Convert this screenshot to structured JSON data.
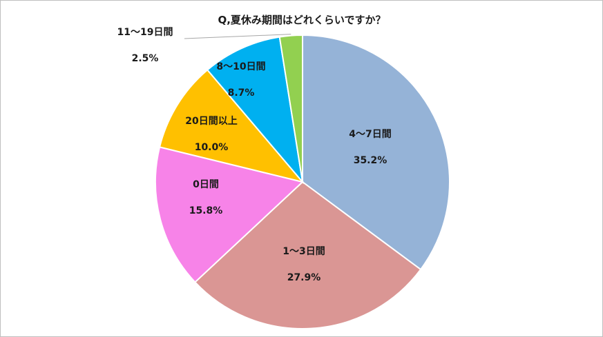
{
  "chart_data": {
    "type": "pie",
    "title": "Q,夏休み期間はどれくらいですか？",
    "slices": [
      {
        "label": "4〜7日間",
        "value": 35.2,
        "value_label": "35.2%",
        "color": "#95b3d7"
      },
      {
        "label": "1〜3日間",
        "value": 27.9,
        "value_label": "27.9%",
        "color": "#da9694"
      },
      {
        "label": "0日間",
        "value": 15.8,
        "value_label": "15.8%",
        "color": "#f783e8"
      },
      {
        "label": "20日間以上",
        "value": 10.0,
        "value_label": "10.0%",
        "color": "#ffc000"
      },
      {
        "label": "8〜10日間",
        "value": 8.7,
        "value_label": "8.7%",
        "color": "#00b0f0"
      },
      {
        "label": "11〜19日間",
        "value": 2.5,
        "value_label": "2.5%",
        "color": "#92d050"
      }
    ],
    "start_angle": "12 o'clock",
    "direction": "clockwise",
    "legend": "none",
    "data_labels": "category and percent"
  }
}
